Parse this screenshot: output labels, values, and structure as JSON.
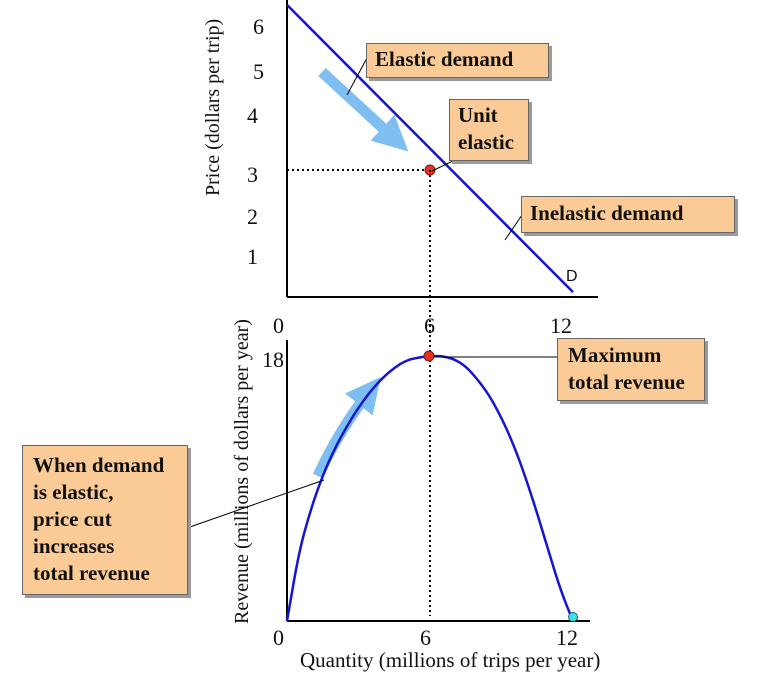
{
  "chart_data": [
    {
      "type": "line",
      "ylabel": "Price (dollars per trip)",
      "xlim": [
        0,
        12
      ],
      "ylim": [
        0,
        6
      ],
      "x_ticks": [
        "0",
        "6",
        "12"
      ],
      "y_ticks": [
        "1",
        "2",
        "3",
        "4",
        "5",
        "6"
      ],
      "series": [
        {
          "name": "D",
          "x": [
            0,
            12
          ],
          "y": [
            5.9,
            0.1
          ]
        }
      ],
      "point": {
        "x": 6,
        "y": 3,
        "color": "#e8321e"
      },
      "annotations": [
        "Elastic demand",
        "Unit elastic",
        "Inelastic demand"
      ],
      "colors": {
        "line": "#1414d2",
        "arrow": "#7fbef0",
        "label_fill": "#fbcb97"
      }
    },
    {
      "type": "line",
      "xlabel": "Quantity (millions of trips per year)",
      "ylabel": "Revenue (millions of dollars per year)",
      "xlim": [
        0,
        12
      ],
      "ylim": [
        0,
        18
      ],
      "x_ticks": [
        "0",
        "6",
        "12"
      ],
      "y_ticks": [
        "18"
      ],
      "series": [
        {
          "name": "Total revenue",
          "x": [
            0,
            0.5,
            1,
            1.5,
            2,
            2.5,
            3,
            3.5,
            4,
            4.5,
            5,
            5.5,
            6,
            6.5,
            7,
            7.5,
            8,
            8.5,
            9,
            9.5,
            10,
            10.5,
            11,
            11.5,
            12
          ],
          "y": [
            0,
            4.7,
            7.6,
            9.9,
            11.7,
            13.2,
            14.5,
            15.6,
            16.5,
            17.2,
            17.7,
            17.9,
            18,
            18,
            17.8,
            17.3,
            16.4,
            15.3,
            13.8,
            12.0,
            9.8,
            7.3,
            4.6,
            2.0,
            0
          ]
        }
      ],
      "points": [
        {
          "x": 6,
          "y": 18,
          "color": "#e8321e"
        },
        {
          "x": 12,
          "y": 0,
          "color": "#3ee0e8"
        }
      ],
      "annotations": [
        "Maximum total revenue",
        "When demand is elastic, price cut increases total revenue"
      ]
    }
  ],
  "top": {
    "y_tick_labels": [
      "6",
      "5",
      "4",
      "3",
      "2",
      "1"
    ],
    "x_tick_labels": [
      "0",
      "6",
      "12"
    ],
    "ylabel": "Price (dollars per trip)",
    "curve_label": "D",
    "label_elastic": "Elastic demand",
    "label_unit_1": "Unit",
    "label_unit_2": "elastic",
    "label_inelastic": "Inelastic demand"
  },
  "bottom": {
    "y_tick_label": "18",
    "x_tick_labels": [
      "0",
      "6",
      "12"
    ],
    "ylabel": "Revenue (millions of dollars per year)",
    "xlabel": "Quantity (millions of trips per year)",
    "label_max_1": "Maximum",
    "label_max_2": "total revenue",
    "label_elastic_1": "When demand",
    "label_elastic_2": "is elastic,",
    "label_elastic_3": "price cut",
    "label_elastic_4": "increases",
    "label_elastic_5": "total revenue"
  }
}
